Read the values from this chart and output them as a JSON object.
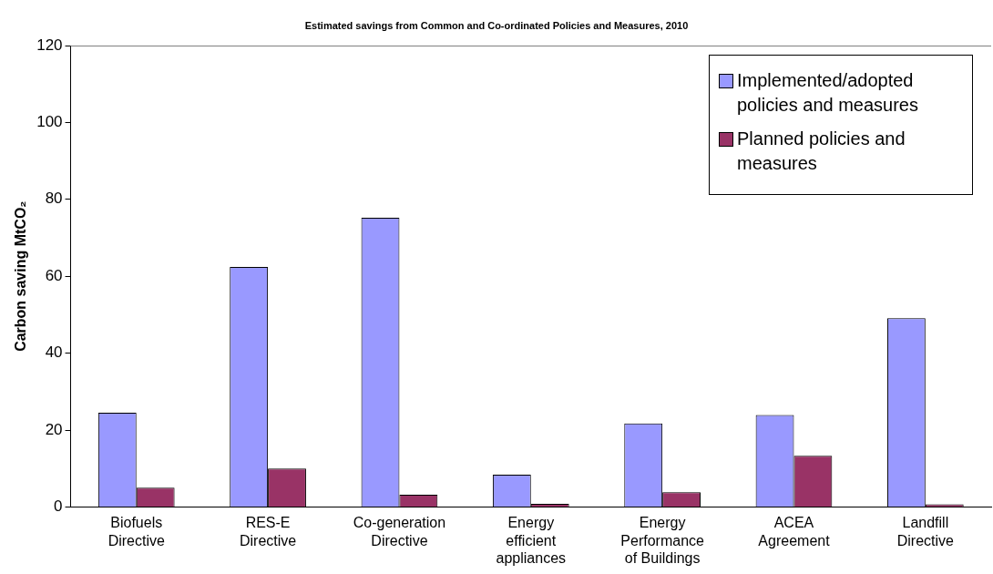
{
  "chart_data": {
    "type": "bar",
    "title": "Estimated savings from Common and Co-ordinated Policies and Measures, 2010",
    "ylabel": "Carbon saving MtCO₂",
    "categories": [
      "Biofuels Directive",
      "RES-E Directive",
      "Co-generation Directive",
      "Energy efficient appliances",
      "Energy Performance of Buildings",
      "ACEA Agreement",
      "Landfill Directive"
    ],
    "series": [
      {
        "name": "Implemented/adopted policies and measures",
        "color": "#9999ff",
        "values": [
          24.5,
          62.4,
          75.2,
          8.4,
          21.7,
          23.9,
          49.1
        ]
      },
      {
        "name": "Planned policies and measures",
        "color": "#993366",
        "values": [
          5.0,
          10.0,
          3.2,
          0.8,
          3.8,
          13.3,
          0.7
        ]
      }
    ],
    "ylim": [
      0,
      120
    ],
    "yticks": [
      0,
      20,
      40,
      60,
      80,
      100,
      120
    ],
    "grid": false,
    "legend": "top right"
  }
}
